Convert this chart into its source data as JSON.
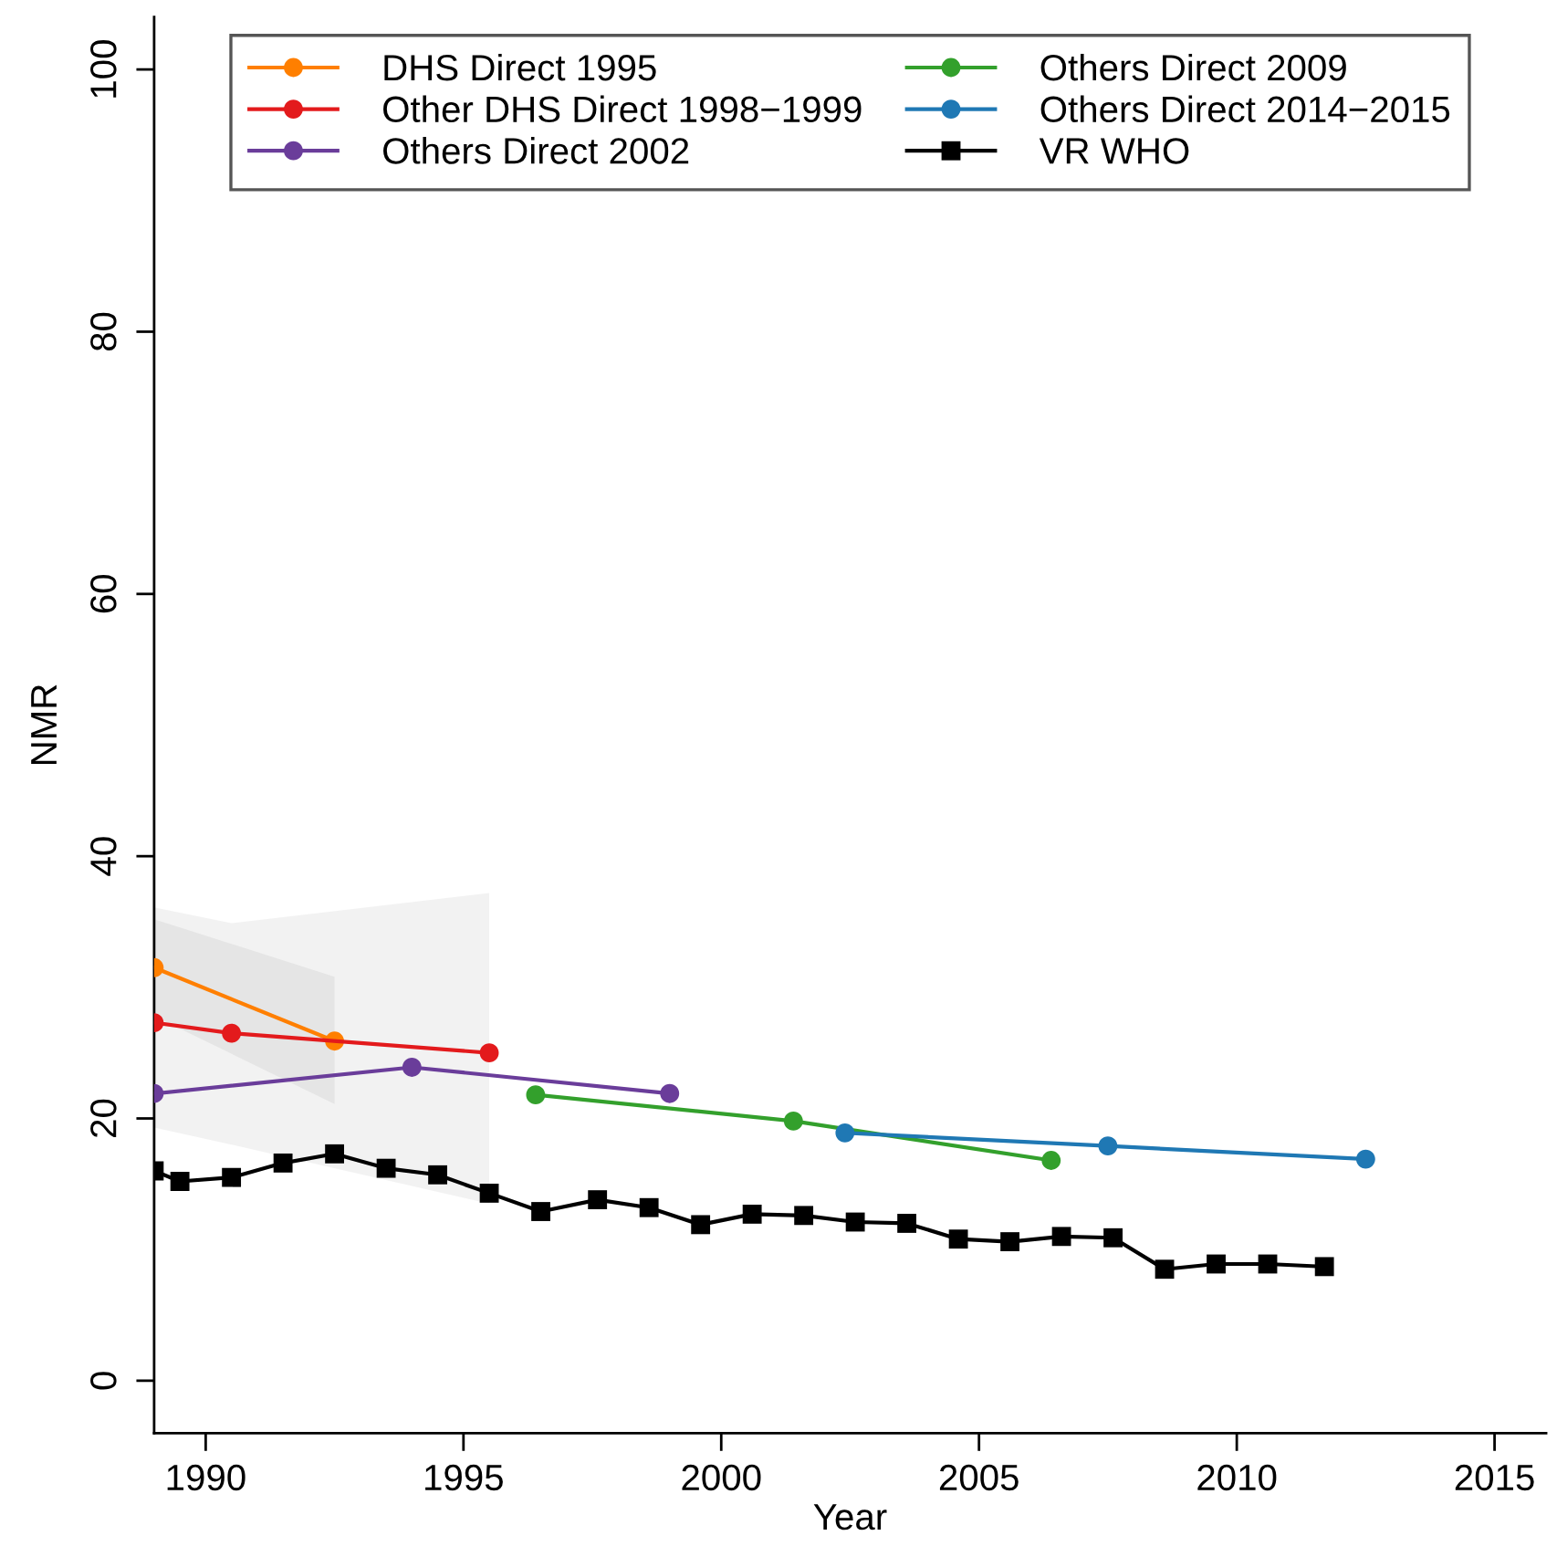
{
  "chart_data": {
    "type": "line",
    "xlabel": "Year",
    "ylabel": "NMR",
    "xlim": [
      1989,
      2016
    ],
    "ylim": [
      -4,
      104
    ],
    "xticks": [
      1990,
      1995,
      2000,
      2005,
      2010,
      2015
    ],
    "yticks": [
      0,
      20,
      40,
      60,
      80,
      100
    ],
    "legend": "top",
    "line_style": "solid",
    "series": [
      {
        "name": "DHS Direct 1995",
        "color": "#ff7f00",
        "marker": "circle",
        "x": [
          1989,
          1992.5
        ],
        "values": [
          31.5,
          25.9
        ],
        "lower": [
          27.8,
          21.1
        ],
        "upper": [
          35.2,
          30.8
        ]
      },
      {
        "name": "Other DHS Direct 1998−1999",
        "color": "#e31a1c",
        "marker": "circle",
        "x": [
          1989,
          1990.5,
          1995.5
        ],
        "values": [
          27.3,
          26.5,
          25.0
        ],
        "lower": [
          19.3,
          18.0,
          13.5
        ],
        "upper": [
          36.1,
          34.9,
          37.2
        ]
      },
      {
        "name": "Others Direct 2002",
        "color": "#6a3d9a",
        "marker": "circle",
        "x": [
          1989,
          1994,
          1999
        ],
        "values": [
          21.9,
          23.9,
          21.9
        ]
      },
      {
        "name": "Others Direct 2009",
        "color": "#33a02c",
        "marker": "circle",
        "x": [
          1996.4,
          2001.4,
          2006.4
        ],
        "values": [
          21.8,
          19.8,
          16.8
        ]
      },
      {
        "name": "Others Direct 2014−2015",
        "color": "#1f78b4",
        "marker": "circle",
        "x": [
          2002.4,
          2007.5,
          2012.5
        ],
        "values": [
          18.9,
          17.9,
          16.9
        ]
      },
      {
        "name": "VR WHO",
        "color": "#000000",
        "marker": "square",
        "x": [
          1989,
          1989.5,
          1990.5,
          1991.5,
          1992.5,
          1993.5,
          1994.5,
          1995.5,
          1996.5,
          1997.6,
          1998.6,
          1999.6,
          2000.6,
          2001.6,
          2002.6,
          2003.6,
          2004.6,
          2005.6,
          2006.6,
          2007.6,
          2008.6,
          2009.6,
          2010.6,
          2011.7
        ],
        "values": [
          16.0,
          15.2,
          15.5,
          16.6,
          17.3,
          16.2,
          15.7,
          14.3,
          12.9,
          13.8,
          13.2,
          11.9,
          12.7,
          12.6,
          12.1,
          12.0,
          10.8,
          10.6,
          11.0,
          10.9,
          8.5,
          8.9,
          8.9,
          8.7
        ]
      }
    ]
  }
}
